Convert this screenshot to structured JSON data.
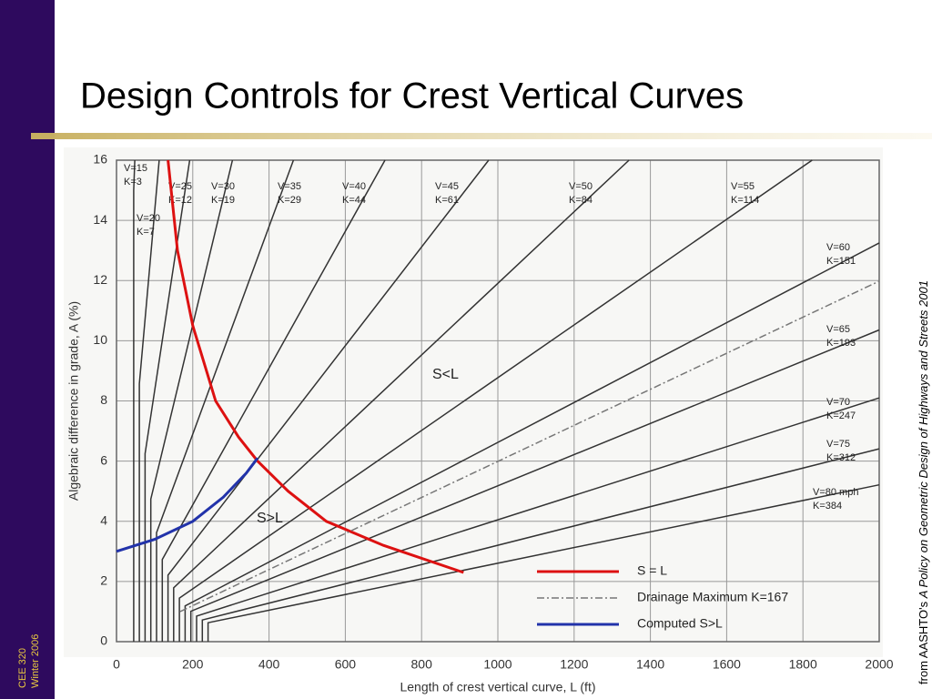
{
  "slide": {
    "title": "Design Controls for Crest Vertical Curves",
    "footer": [
      "CEE 320",
      "Winter 2006"
    ],
    "source_prefix": "from AASHTO's ",
    "source_title": "A Policy on Geometric Design of Highways and Streets",
    "source_year": " 2001"
  },
  "chart_data": {
    "type": "line",
    "x_label": "Length of crest vertical curve, L (ft)",
    "y_label": "Algebraic difference in grade, A (%)",
    "xlim": [
      0,
      2000
    ],
    "xticks": [
      0,
      200,
      400,
      600,
      800,
      1000,
      1200,
      1400,
      1600,
      1800,
      2000
    ],
    "ylim": [
      0,
      16
    ],
    "yticks": [
      0,
      2,
      4,
      6,
      8,
      10,
      12,
      14,
      16
    ],
    "grid": true,
    "annotations": [
      "S<L",
      "S>L"
    ],
    "series": [
      {
        "speed": "V=15",
        "k_label": "K=3",
        "color": "#333333",
        "x": [
          45,
          45,
          48
        ],
        "values": [
          0,
          15,
          16
        ]
      },
      {
        "speed": "V=20",
        "k_label": "K=7",
        "color": "#333333",
        "x": [
          60,
          60,
          112
        ],
        "values": [
          0,
          8.57,
          16
        ]
      },
      {
        "speed": "V=25",
        "k_label": "K=12",
        "color": "#333333",
        "x": [
          75,
          75,
          192
        ],
        "values": [
          0,
          6.25,
          16
        ]
      },
      {
        "speed": "V=30",
        "k_label": "K=19",
        "color": "#333333",
        "x": [
          90,
          90,
          304
        ],
        "values": [
          0,
          4.74,
          16
        ]
      },
      {
        "speed": "V=35",
        "k_label": "K=29",
        "color": "#333333",
        "x": [
          105,
          105,
          464
        ],
        "values": [
          0,
          3.62,
          16
        ]
      },
      {
        "speed": "V=40",
        "k_label": "K=44",
        "color": "#333333",
        "x": [
          120,
          120,
          704
        ],
        "values": [
          0,
          2.73,
          16
        ]
      },
      {
        "speed": "V=45",
        "k_label": "K=61",
        "color": "#333333",
        "x": [
          135,
          135,
          976
        ],
        "values": [
          0,
          2.21,
          16
        ]
      },
      {
        "speed": "V=50",
        "k_label": "K=84",
        "color": "#333333",
        "x": [
          150,
          150,
          1344
        ],
        "values": [
          0,
          1.79,
          16
        ]
      },
      {
        "speed": "V=55",
        "k_label": "K=114",
        "color": "#333333",
        "x": [
          165,
          165,
          1824
        ],
        "values": [
          0,
          1.45,
          16
        ]
      },
      {
        "speed": "V=60",
        "k_label": "K=151",
        "color": "#333333",
        "x": [
          180,
          180,
          2000
        ],
        "values": [
          0,
          1.19,
          13.25
        ]
      },
      {
        "speed": "V=65",
        "k_label": "K=193",
        "color": "#333333",
        "x": [
          195,
          195,
          2000
        ],
        "values": [
          0,
          1.01,
          10.36
        ]
      },
      {
        "speed": "V=70",
        "k_label": "K=247",
        "color": "#333333",
        "x": [
          210,
          210,
          2000
        ],
        "values": [
          0,
          0.85,
          8.1
        ]
      },
      {
        "speed": "V=75",
        "k_label": "K=312",
        "color": "#333333",
        "x": [
          225,
          225,
          2000
        ],
        "values": [
          0,
          0.72,
          6.41
        ]
      },
      {
        "speed": "V=80 mph",
        "k_label": "K=384",
        "color": "#333333",
        "x": [
          240,
          240,
          2000
        ],
        "values": [
          0,
          0.63,
          5.21
        ]
      },
      {
        "name": "S = L",
        "color": "#dd1111",
        "x": [
          135,
          160,
          200,
          260,
          320,
          370,
          450,
          550,
          700,
          910
        ],
        "values": [
          16,
          13,
          10.5,
          8,
          6.8,
          6,
          5,
          4,
          3.2,
          2.3
        ]
      },
      {
        "name": "Drainage Maximum K=167",
        "color": "#777777",
        "dash": true,
        "x": [
          167,
          2000
        ],
        "values": [
          1,
          11.98
        ]
      },
      {
        "name": "Computed S>L",
        "color": "#2233aa",
        "x": [
          0,
          100,
          200,
          280,
          340,
          370
        ],
        "values": [
          3,
          3.4,
          4,
          4.8,
          5.6,
          6.1
        ]
      }
    ]
  }
}
